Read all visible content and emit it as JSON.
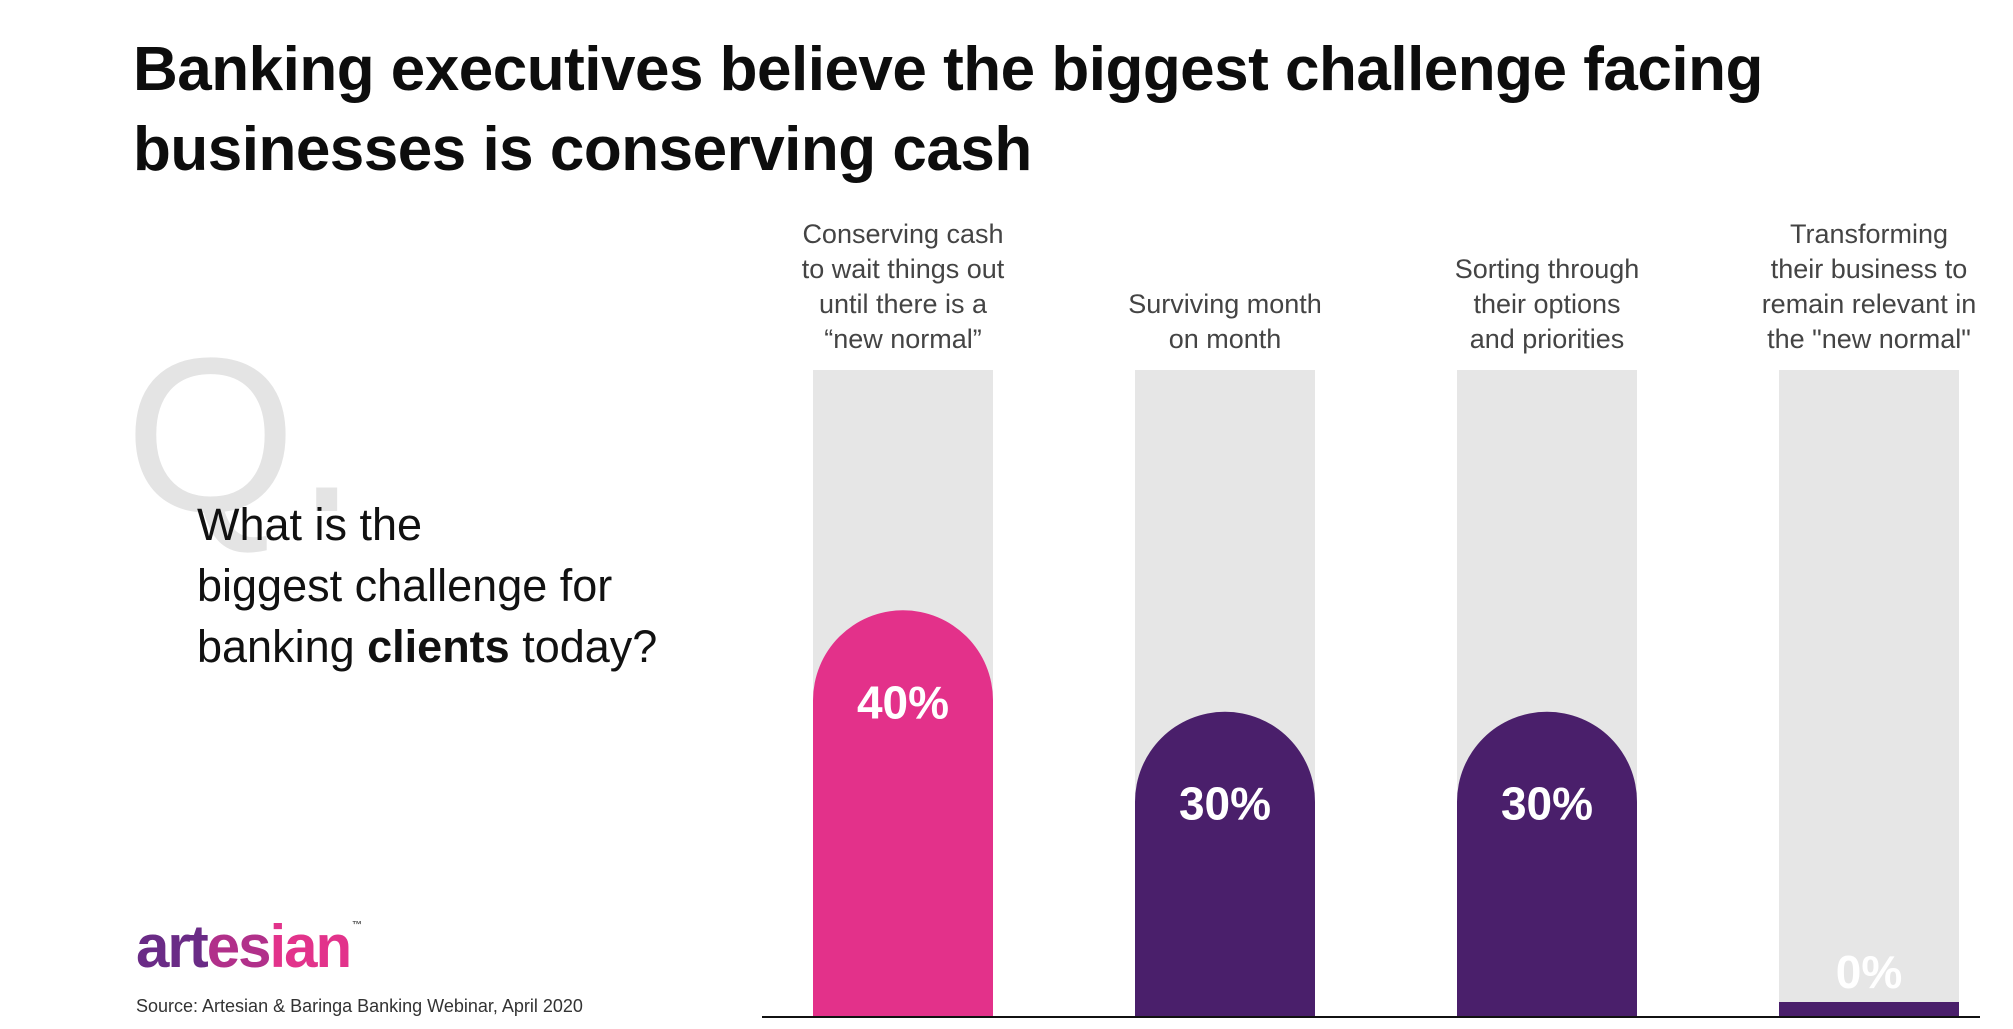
{
  "title_lines": [
    "Banking executives believe the biggest challenge facing",
    "businesses is conserving cash"
  ],
  "question": {
    "mark": "Q.",
    "line1": "What is the",
    "line2": "biggest challenge for",
    "line3_pre": "banking ",
    "line3_bold": "clients",
    "line3_post": " today?"
  },
  "logo": {
    "text": "artesian",
    "tm": "™"
  },
  "source": "Source: Artesian & Baringa Banking Webinar, April 2020",
  "colors": {
    "pink": "#e3318a",
    "purple": "#4a1f6b",
    "track": "#e6e6e6"
  },
  "chart_data": {
    "type": "bar",
    "categories": [
      [
        "Conserving cash",
        "to wait things out",
        "until there is a",
        "“new normal”"
      ],
      [
        "Surviving month",
        "on month"
      ],
      [
        "Sorting through",
        "their options",
        "and priorities"
      ],
      [
        "Transforming",
        "their business to",
        "remain relevant in",
        "the \"new normal\""
      ]
    ],
    "values": [
      40,
      30,
      30,
      0
    ],
    "value_labels": [
      "40%",
      "30%",
      "30%",
      "0%"
    ],
    "highlight_index": 0,
    "ylim": [
      0,
      100
    ],
    "grid": false,
    "legend": "none"
  }
}
